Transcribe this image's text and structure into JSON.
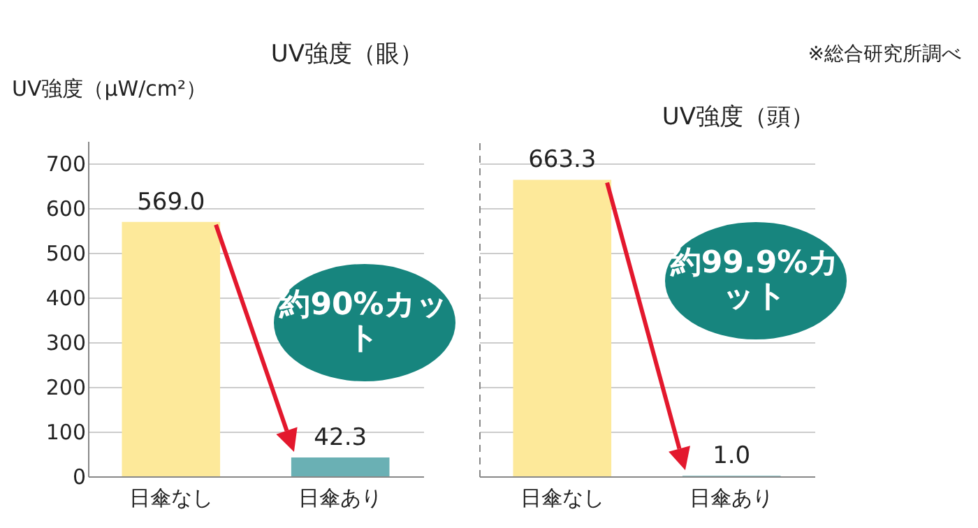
{
  "chart_data": [
    {
      "type": "bar",
      "title": "UV強度（眼）",
      "ylabel": "UV強度（μW/cm²）",
      "categories": [
        "日傘なし",
        "日傘あり"
      ],
      "values": [
        569.0,
        42.3
      ],
      "colors": [
        "#fde99a",
        "#6ab0b4"
      ],
      "value_labels": [
        "569.0",
        "42.3"
      ],
      "ylim": [
        0,
        750
      ],
      "yticks": [
        0,
        100,
        200,
        300,
        400,
        500,
        600,
        700
      ],
      "grid": "y",
      "annotations": [
        "約90%カット"
      ]
    },
    {
      "type": "bar",
      "title": "UV強度（頭）",
      "categories": [
        "日傘なし",
        "日傘あり"
      ],
      "values": [
        663.3,
        1.0
      ],
      "colors": [
        "#fde99a",
        "#6ab0b4"
      ],
      "value_labels": [
        "663.3",
        "1.0"
      ],
      "ylim": [
        0,
        750
      ],
      "yticks": [
        0,
        100,
        200,
        300,
        400,
        500,
        600,
        700
      ],
      "grid": "y",
      "tick_labels": "x",
      "annotations": [
        "約99.9%カット",
        "※総合研究所調べ"
      ]
    }
  ]
}
